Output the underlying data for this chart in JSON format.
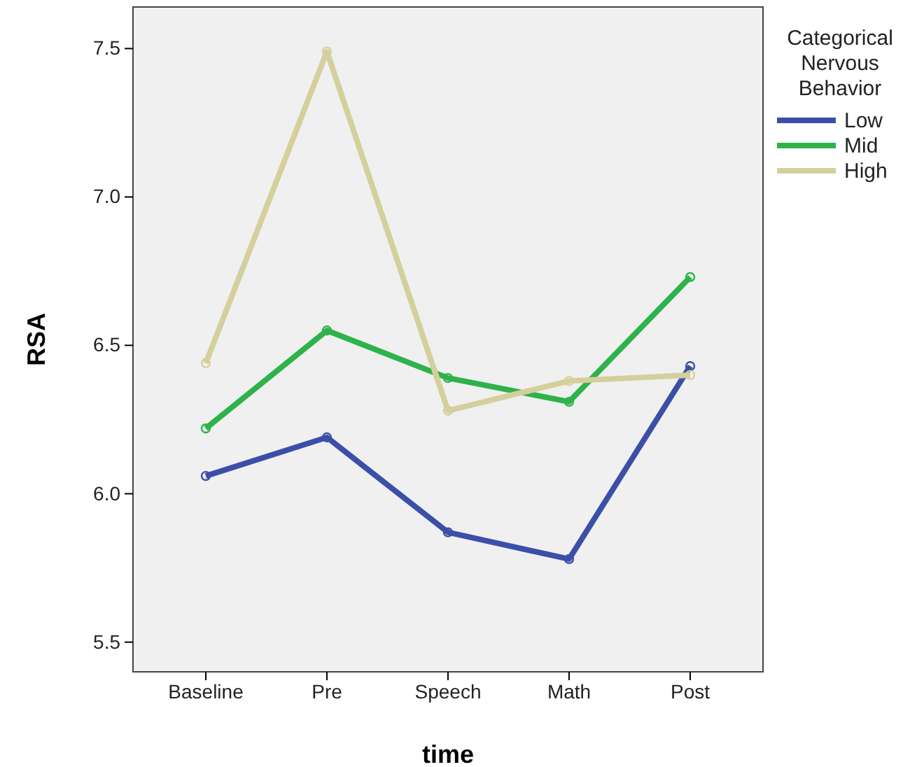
{
  "chart_data": {
    "type": "line",
    "xlabel": "time",
    "ylabel": "RSA",
    "legend_title": "Categorical Nervous Behavior",
    "categories": [
      "Baseline",
      "Pre",
      "Speech",
      "Math",
      "Post"
    ],
    "series": [
      {
        "name": "Low",
        "color": "#3c4fa8",
        "values": [
          6.06,
          6.19,
          5.87,
          5.78,
          6.43
        ]
      },
      {
        "name": "Mid",
        "color": "#2db34a",
        "values": [
          6.22,
          6.55,
          6.39,
          6.31,
          6.73
        ]
      },
      {
        "name": "High",
        "color": "#d5cf9d",
        "values": [
          6.44,
          7.49,
          6.28,
          6.38,
          6.4
        ]
      }
    ],
    "ylim": [
      5.4,
      7.64
    ],
    "yticks": [
      5.5,
      {
        "value": 6,
        "label": "6.0"
      },
      6.5,
      {
        "value": 7,
        "label": "7.0"
      },
      7.5
    ],
    "grid": false,
    "legend": "top right",
    "marker": "circle",
    "line_style": "solid"
  }
}
